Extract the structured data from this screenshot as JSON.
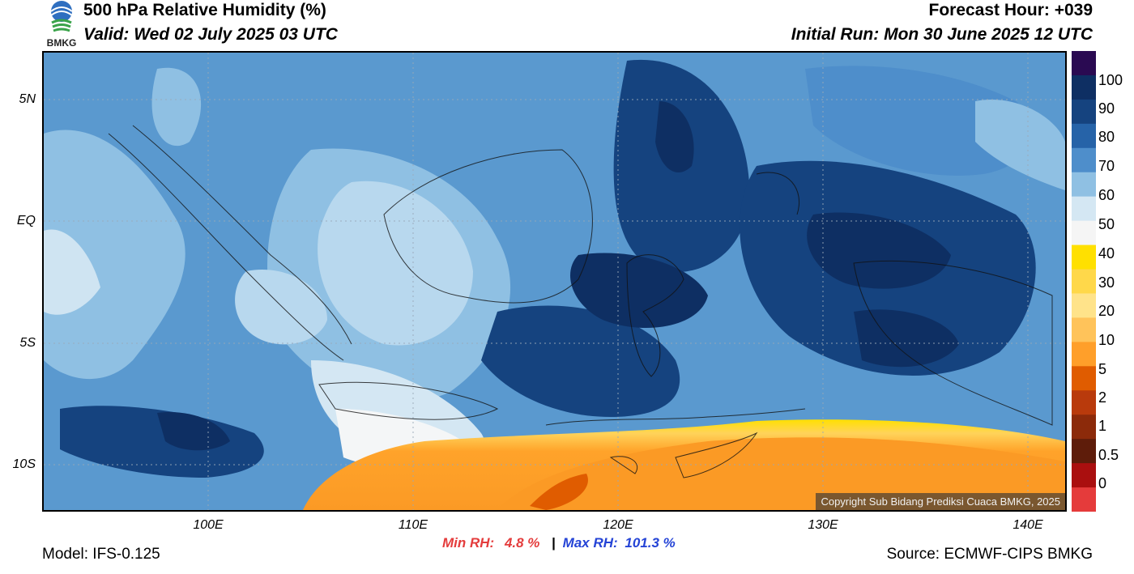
{
  "header": {
    "title": "500 hPa Relative Humidity (%)",
    "valid": "Valid: Wed 02 July 2025 03 UTC",
    "forecast_hour": "Forecast Hour: +039",
    "initial_run": "Initial Run: Mon 30 June 2025 12 UTC"
  },
  "logo": {
    "text": "BMKG"
  },
  "map": {
    "lat_labels": [
      "5N",
      "EQ",
      "5S",
      "10S"
    ],
    "lon_labels": [
      "100E",
      "110E",
      "120E",
      "130E",
      "140E"
    ],
    "copyright": "Copyright Sub Bidang Prediksi Cuaca BMKG, 2025"
  },
  "colorbar": {
    "labels": [
      "100",
      "90",
      "80",
      "70",
      "60",
      "50",
      "40",
      "30",
      "20",
      "10",
      "5",
      "2",
      "1",
      "0.5",
      "0"
    ],
    "colors": [
      "#2a0a52",
      "#0e2f63",
      "#15437f",
      "#2663a8",
      "#4e8ecb",
      "#8fc0e3",
      "#d4e7f3",
      "#f5f5f5",
      "#ffe000",
      "#ffd84a",
      "#ffe38a",
      "#ffc35a",
      "#ff9f2a",
      "#e05c00",
      "#b93a0c",
      "#8c2a0a",
      "#5e1c0a",
      "#aa0f0f",
      "#e53b3b"
    ]
  },
  "stats": {
    "min_label": "Min RH:",
    "min_value": "4.8 %",
    "separator": "|",
    "max_label": "Max RH:",
    "max_value": "101.3 %"
  },
  "footer": {
    "model": "Model: IFS-0.125",
    "source": "Source: ECMWF-CIPS BMKG"
  }
}
